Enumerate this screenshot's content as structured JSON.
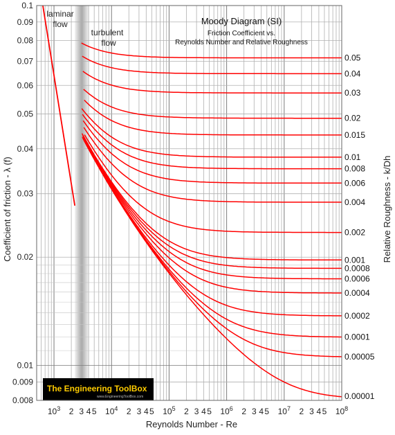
{
  "chart_data": {
    "type": "line",
    "title": "Moody Diagram (SI)",
    "subtitle_line1": "Friction Coefficient vs.",
    "subtitle_line2": "Reynolds Number and Relative Roughness",
    "xlabel": "Reynolds Number - Re",
    "ylabel": "Coefficient of friction - λ (f)",
    "y2label": "Relative Roughness - k/Dh",
    "x_scale": "log",
    "y_scale": "log",
    "xlim": [
      500,
      100000000
    ],
    "ylim": [
      0.008,
      0.1
    ],
    "grid": true,
    "y_ticks": [
      {
        "value": 0.1,
        "label": "0.1"
      },
      {
        "value": 0.09,
        "label": "0.09"
      },
      {
        "value": 0.08,
        "label": "0.08"
      },
      {
        "value": 0.07,
        "label": "0.07"
      },
      {
        "value": 0.06,
        "label": "0.06"
      },
      {
        "value": 0.05,
        "label": "0.05"
      },
      {
        "value": 0.04,
        "label": "0.04"
      },
      {
        "value": 0.03,
        "label": "0.03"
      },
      {
        "value": 0.02,
        "label": "0.02"
      },
      {
        "value": 0.01,
        "label": "0.01"
      },
      {
        "value": 0.009,
        "label": "0.009"
      },
      {
        "value": 0.008,
        "label": "0.008"
      }
    ],
    "x_tick_decades": [
      {
        "value": 1000,
        "label": "10",
        "exp": "3"
      },
      {
        "value": 10000,
        "label": "10",
        "exp": "4"
      },
      {
        "value": 100000,
        "label": "10",
        "exp": "5"
      },
      {
        "value": 1000000,
        "label": "10",
        "exp": "6"
      },
      {
        "value": 10000000,
        "label": "10",
        "exp": "7"
      },
      {
        "value": 100000000,
        "label": "10",
        "exp": "8"
      }
    ],
    "x_tick_minor_labels": [
      "2",
      "3",
      "4",
      "5"
    ],
    "annotations": {
      "laminar_line1": "laminar",
      "laminar_line2": "flow",
      "turbulent_line1": "turbulent",
      "turbulent_line2": "flow"
    },
    "laminar": {
      "x": [
        640,
        2300
      ],
      "y": [
        0.1,
        0.0278
      ]
    },
    "transition_zone": [
      2300,
      4000
    ],
    "curve_color": "#ff0000",
    "roughness_series": [
      {
        "name": "0.05",
        "label": "0.05",
        "value": 0.05
      },
      {
        "name": "0.04",
        "label": "0.04",
        "value": 0.04
      },
      {
        "name": "0.03",
        "label": "0.03",
        "value": 0.03
      },
      {
        "name": "0.02",
        "label": "0.02",
        "value": 0.02
      },
      {
        "name": "0.015",
        "label": "0.015",
        "value": 0.015
      },
      {
        "name": "0.01",
        "label": "0.01",
        "value": 0.01
      },
      {
        "name": "0.008",
        "label": "0.008",
        "value": 0.008
      },
      {
        "name": "0.006",
        "label": "0.006",
        "value": 0.006
      },
      {
        "name": "0.004",
        "label": "0.004",
        "value": 0.004
      },
      {
        "name": "0.002",
        "label": "0.002",
        "value": 0.002
      },
      {
        "name": "0.001",
        "label": "0.001",
        "value": 0.001
      },
      {
        "name": "0.0008",
        "label": "0.0008",
        "value": 0.0008
      },
      {
        "name": "0.0006",
        "label": "0.0006",
        "value": 0.0006
      },
      {
        "name": "0.0004",
        "label": "0.0004",
        "value": 0.0004
      },
      {
        "name": "0.0002",
        "label": "0.0002",
        "value": 0.0002
      },
      {
        "name": "0.0001",
        "label": "0.0001",
        "value": 0.0001
      },
      {
        "name": "0.00005",
        "label": "0.00005",
        "value": 5e-05
      },
      {
        "name": "0.00001",
        "label": "0.00001",
        "value": 1e-05
      }
    ]
  },
  "logo": {
    "text": "The Engineering ToolBox",
    "url_text": "www.EngineeringToolBox.com",
    "bg_color": "#000000",
    "text_color": "#ffcc00"
  }
}
